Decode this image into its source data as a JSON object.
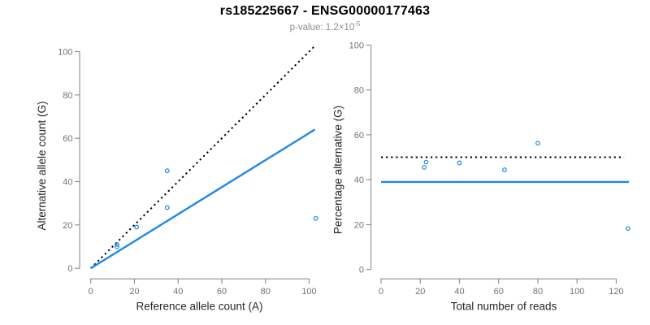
{
  "title": "rs185225667 - ENSG00000177463",
  "subtitle": {
    "text": "p-value: 1.2×10",
    "exponent": "-5"
  },
  "colors": {
    "accent_blue": "#1e87e5",
    "reference_line_black": "#000000",
    "axis_gray": "#8c8c8c",
    "tick_label_gray": "#737373",
    "subtitle_gray": "#8c8c8c"
  },
  "chart_data": [
    {
      "type": "scatter",
      "xlabel": "Reference allele count (A)",
      "ylabel": "Alternative allele count (G)",
      "xlim": [
        0,
        103
      ],
      "ylim": [
        0,
        103
      ],
      "xticks": [
        0,
        20,
        40,
        60,
        80,
        100
      ],
      "yticks": [
        0,
        20,
        40,
        60,
        80,
        100
      ],
      "grid": false,
      "marker": "open-circle",
      "points": [
        [
          12,
          10
        ],
        [
          12,
          11
        ],
        [
          21,
          19
        ],
        [
          35,
          28
        ],
        [
          35,
          45
        ],
        [
          103,
          23
        ]
      ],
      "lines": [
        {
          "name": "identity-line",
          "style": "dotted",
          "color": "#000000",
          "slope": 1,
          "intercept": 0,
          "xrange": [
            0,
            102.8
          ]
        },
        {
          "name": "fit-line",
          "style": "solid",
          "color": "#1e87e5",
          "slope": 0.624,
          "intercept": 0,
          "xrange": [
            0,
            102.6
          ]
        }
      ]
    },
    {
      "type": "scatter",
      "xlabel": "Total number of reads",
      "ylabel": "Percentage alternative (G)",
      "xlim": [
        0,
        127
      ],
      "ylim": [
        0,
        100
      ],
      "xticks": [
        0,
        20,
        40,
        60,
        80,
        100,
        120
      ],
      "yticks": [
        0,
        20,
        40,
        60,
        80,
        100
      ],
      "grid": false,
      "marker": "open-circle",
      "points": [
        [
          22,
          45.5
        ],
        [
          23,
          47.8
        ],
        [
          40,
          47.5
        ],
        [
          63,
          44.4
        ],
        [
          80,
          56.3
        ],
        [
          126,
          18.3
        ]
      ],
      "lines": [
        {
          "name": "fifty-percent-line",
          "style": "dotted",
          "color": "#000000",
          "slope": 0,
          "intercept": 50,
          "xrange": [
            0,
            124
          ]
        },
        {
          "name": "mean-percentage-line",
          "style": "solid",
          "color": "#1e87e5",
          "slope": 0,
          "intercept": 39,
          "xrange": [
            0,
            126.5
          ]
        }
      ]
    }
  ]
}
